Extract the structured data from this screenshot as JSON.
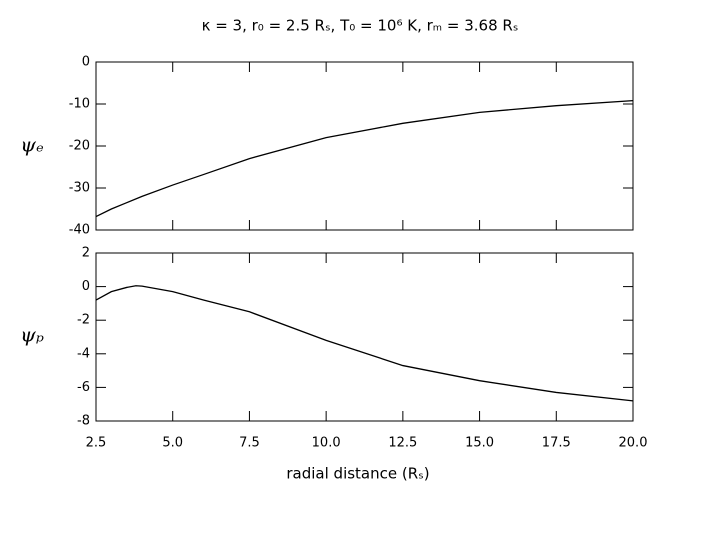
{
  "chart_data": [
    {
      "type": "line",
      "title": "κ = 3, r₀ = 2.5 Rₛ, T₀ = 10⁶ K, rₘ = 3.68 Rₛ",
      "ylabel": "ψₑ",
      "x": [
        2.5,
        3,
        3.5,
        4,
        5,
        6,
        7.5,
        10,
        12.5,
        15,
        17.5,
        20
      ],
      "values": [
        -36.8,
        -35,
        -33.5,
        -32,
        -29.3,
        -26.8,
        -23,
        -18,
        -14.6,
        -12,
        -10.4,
        -9.2
      ],
      "color": "#000000",
      "ylim": [
        -40,
        0
      ],
      "yticks": [
        0,
        -10,
        -20,
        -30,
        -40
      ]
    },
    {
      "type": "line",
      "ylabel": "ψₚ",
      "xlabel": "radial distance (Rₛ)",
      "x": [
        2.5,
        3,
        3.5,
        3.8,
        4,
        5,
        6,
        7.5,
        10,
        12.5,
        15,
        17.5,
        20
      ],
      "values": [
        -0.8,
        -0.3,
        -0.05,
        0.05,
        0.03,
        -0.3,
        -0.8,
        -1.5,
        -3.2,
        -4.7,
        -5.6,
        -6.3,
        -6.8
      ],
      "color": "#000000",
      "xlim": [
        2.5,
        20
      ],
      "xticks": [
        2.5,
        {
          "value": 5,
          "label": "5.0"
        },
        7.5,
        {
          "value": 10,
          "label": "10.0"
        },
        12.5,
        {
          "value": 15,
          "label": "15.0"
        },
        17.5,
        {
          "value": 20,
          "label": "20.0"
        }
      ],
      "ylim": [
        -8,
        2
      ],
      "yticks": [
        2,
        0,
        -2,
        -4,
        -6,
        -8
      ]
    }
  ]
}
